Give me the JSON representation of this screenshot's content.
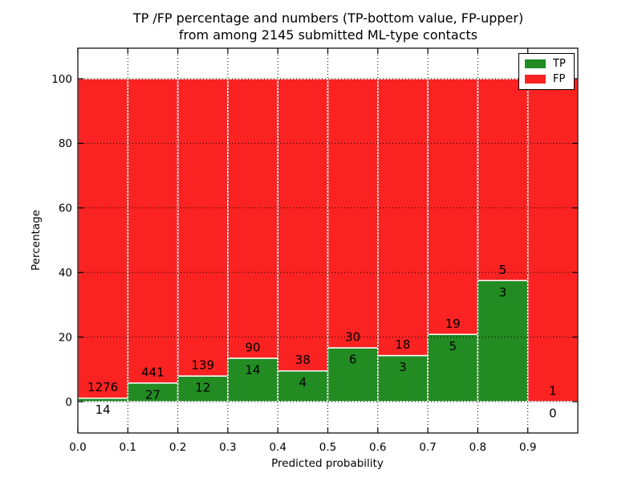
{
  "title": {
    "line1": "TP /FP percentage and numbers (TP-bottom value, FP-upper)",
    "line2": "from among 2145 submitted ML-type contacts"
  },
  "axes": {
    "x_label": "Predicted probability",
    "y_label": "Percentage",
    "x_ticks": [
      "0.0",
      "0.1",
      "0.2",
      "0.3",
      "0.4",
      "0.5",
      "0.6",
      "0.7",
      "0.8",
      "0.9"
    ],
    "y_ticks": [
      "0",
      "20",
      "40",
      "60",
      "80",
      "100"
    ]
  },
  "legend": {
    "position": "upper right",
    "items": [
      {
        "label": "TP",
        "color": "#228b22"
      },
      {
        "label": "FP",
        "color": "#fb2222"
      }
    ]
  },
  "chart_data": {
    "type": "bar",
    "stacked": true,
    "units": "percent",
    "title": "TP /FP percentage and numbers (TP-bottom value, FP-upper) from among 2145 submitted ML-type contacts",
    "xlabel": "Predicted probability",
    "ylabel": "Percentage",
    "xlim": [
      0.0,
      1.0
    ],
    "ylim": [
      -10,
      110
    ],
    "grid": true,
    "legend_position": "upper right",
    "bin_width": 0.1,
    "bin_starts": [
      0.0,
      0.1,
      0.2,
      0.3,
      0.4,
      0.5,
      0.6,
      0.7,
      0.8,
      0.9
    ],
    "categories": [
      "0.0-0.1",
      "0.1-0.2",
      "0.2-0.3",
      "0.3-0.4",
      "0.4-0.5",
      "0.5-0.6",
      "0.6-0.7",
      "0.7-0.8",
      "0.8-0.9",
      "0.9-1.0"
    ],
    "series": [
      {
        "name": "TP",
        "color": "#228b22",
        "counts": [
          14,
          27,
          12,
          14,
          4,
          6,
          3,
          5,
          3,
          0
        ],
        "percent": [
          1.09,
          5.77,
          7.95,
          13.46,
          9.52,
          16.67,
          14.29,
          20.83,
          37.5,
          0.0
        ]
      },
      {
        "name": "FP",
        "color": "#fb2222",
        "counts": [
          1276,
          441,
          139,
          90,
          38,
          30,
          18,
          19,
          5,
          1
        ],
        "percent": [
          98.91,
          94.23,
          92.05,
          86.54,
          90.48,
          83.33,
          85.71,
          79.17,
          62.5,
          100.0
        ]
      }
    ],
    "total_contacts": 2145
  }
}
